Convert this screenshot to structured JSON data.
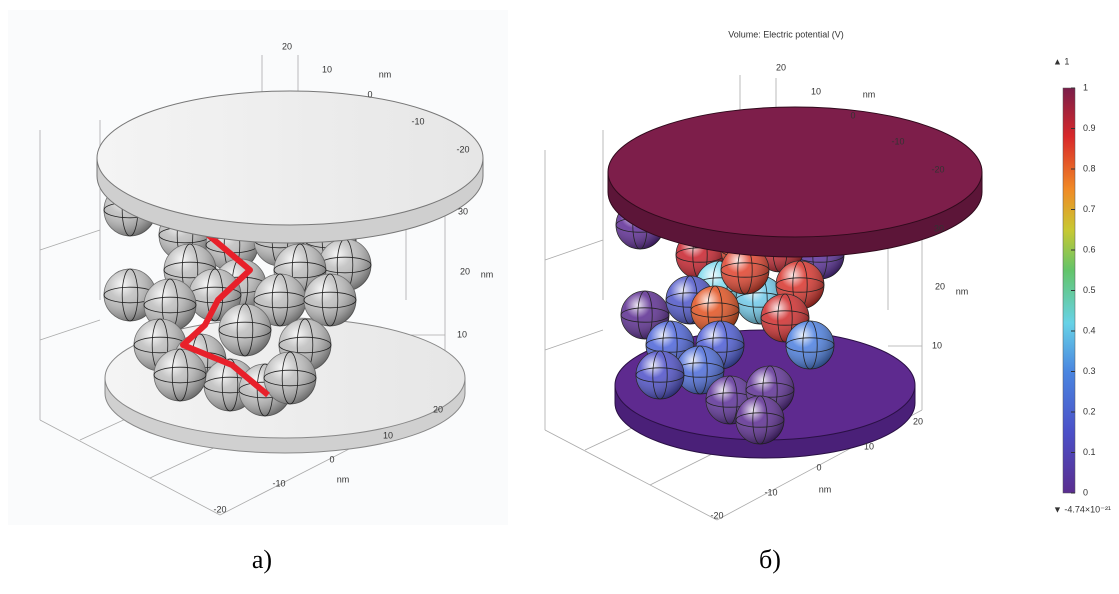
{
  "panels": [
    {
      "caption": "а)",
      "axis_labels": [
        "20",
        "10",
        "nm",
        "0",
        "-10",
        "-20",
        "30",
        "20",
        "nm",
        "10",
        "20",
        "10",
        "0",
        "-10",
        "nm",
        "-20"
      ]
    },
    {
      "caption": "б)",
      "title": "Volume: Electric potential (V)",
      "axis_labels": [
        "20",
        "10",
        "nm",
        "0",
        "-10",
        "-20",
        "30",
        "20",
        "nm",
        "10",
        "20",
        "10",
        "0",
        "-10",
        "nm",
        "-20"
      ],
      "colorbar": {
        "max_label": "▲ 1",
        "min_label": "▼ -4.74×10⁻²¹",
        "range": [
          0,
          1
        ],
        "ticks": [
          1,
          0.9,
          0.8,
          0.7,
          0.6,
          0.5,
          0.4,
          0.3,
          0.2,
          0.1,
          0
        ]
      }
    }
  ]
}
